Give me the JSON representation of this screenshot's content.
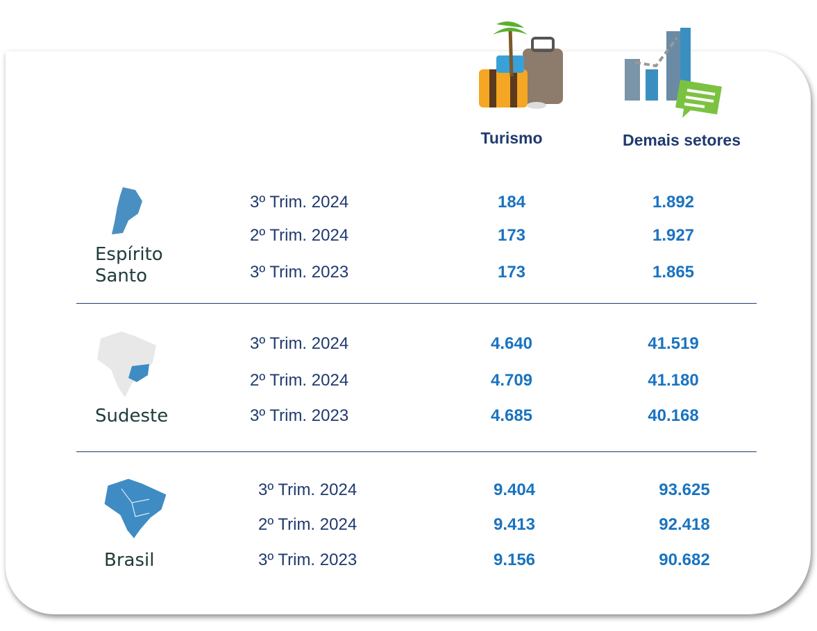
{
  "header": {
    "columns": [
      "Turismo",
      "Demais setores"
    ]
  },
  "groups": [
    {
      "region": "Espírito Santo",
      "rows": [
        {
          "period": "3º Trim. 2024",
          "values": [
            "184",
            "1.892"
          ]
        },
        {
          "period": "2º Trim. 2024",
          "values": [
            "173",
            "1.927"
          ]
        },
        {
          "period": "3º Trim. 2023",
          "values": [
            "173",
            "1.865"
          ]
        }
      ]
    },
    {
      "region": "Sudeste",
      "rows": [
        {
          "period": "3º Trim. 2024",
          "values": [
            "4.640",
            "41.519"
          ]
        },
        {
          "period": "2º Trim. 2024",
          "values": [
            "4.709",
            "41.180"
          ]
        },
        {
          "period": "3º Trim. 2023",
          "values": [
            "4.685",
            "40.168"
          ]
        }
      ]
    },
    {
      "region": "Brasil",
      "rows": [
        {
          "period": "3º Trim. 2024",
          "values": [
            "9.404",
            "93.625"
          ]
        },
        {
          "period": "2º Trim. 2024",
          "values": [
            "9.413",
            "92.418"
          ]
        },
        {
          "period": "3º Trim. 2023",
          "values": [
            "9.156",
            "90.682"
          ]
        }
      ]
    }
  ]
}
